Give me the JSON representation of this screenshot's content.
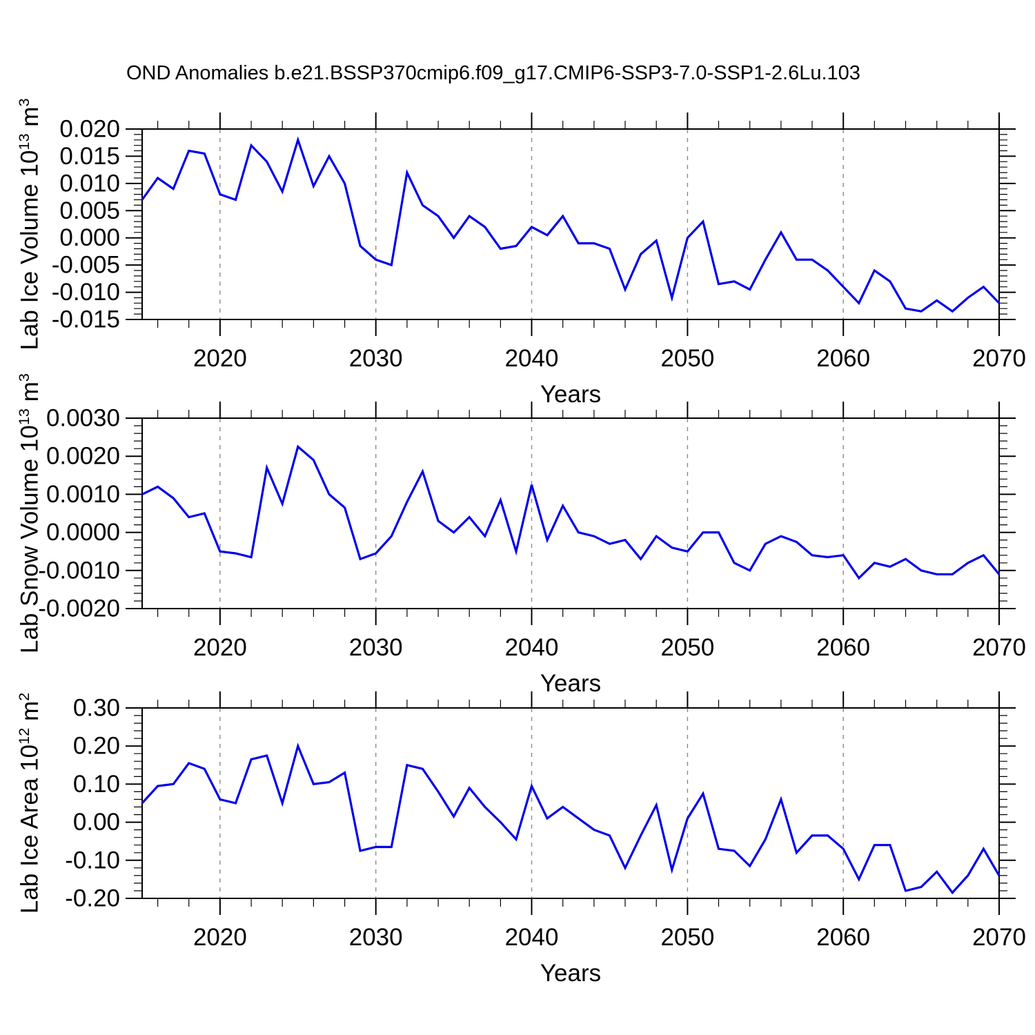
{
  "title": "OND Anomalies b.e21.BSSP370cmip6.f09_g17.CMIP6-SSP3-7.0-SSP1-2.6Lu.103",
  "colors": {
    "line": "#0000EE",
    "grid": "#8A8A8A",
    "axis": "#000000",
    "text": "#000000",
    "background": "#FFFFFF"
  },
  "x_axis": {
    "label": "Years",
    "range": [
      2015,
      2070
    ],
    "tick_years": [
      2020,
      2030,
      2040,
      2050,
      2060,
      2070
    ],
    "tick_labels": [
      "2020",
      "2030",
      "2040",
      "2050",
      "2060",
      "2070"
    ],
    "minor_step_years": 2,
    "gridline_years": [
      2020,
      2030,
      2040,
      2050,
      2060
    ]
  },
  "years": [
    2015,
    2016,
    2017,
    2018,
    2019,
    2020,
    2021,
    2022,
    2023,
    2024,
    2025,
    2026,
    2027,
    2028,
    2029,
    2030,
    2031,
    2032,
    2033,
    2034,
    2035,
    2036,
    2037,
    2038,
    2039,
    2040,
    2041,
    2042,
    2043,
    2044,
    2045,
    2046,
    2047,
    2048,
    2049,
    2050,
    2051,
    2052,
    2053,
    2054,
    2055,
    2056,
    2057,
    2058,
    2059,
    2060,
    2061,
    2062,
    2063,
    2064,
    2065,
    2066,
    2067,
    2068,
    2069,
    2070
  ],
  "chart_data": [
    {
      "type": "line",
      "name": "lab-ice-volume",
      "title": "",
      "xlabel": "Years",
      "ylabel": "Lab Ice Volume 10^13 m^3",
      "ylabel_parts": {
        "prefix": "Lab Ice Volume 10",
        "exp": "13",
        "unit": "m",
        "unit_exp": "3"
      },
      "ylim": [
        -0.015,
        0.02
      ],
      "ytick_step": 0.005,
      "yminor_step": 0.001,
      "ytick_labels": [
        "0.020",
        "0.015",
        "0.010",
        "0.005",
        "0.000",
        "-0.005",
        "-0.010",
        "-0.015"
      ],
      "grid": "x-dashed",
      "legend": "none",
      "values": [
        0.007,
        0.011,
        0.009,
        0.016,
        0.0155,
        0.008,
        0.007,
        0.017,
        0.014,
        0.0085,
        0.018,
        0.0095,
        0.015,
        0.01,
        -0.0015,
        -0.004,
        -0.005,
        0.012,
        0.006,
        0.004,
        0.0,
        0.004,
        0.002,
        -0.002,
        -0.0015,
        0.002,
        0.0005,
        0.004,
        -0.001,
        -0.001,
        -0.002,
        -0.0095,
        -0.003,
        -0.0005,
        -0.011,
        0.0,
        0.003,
        -0.0085,
        -0.008,
        -0.0095,
        -0.004,
        0.001,
        -0.004,
        -0.004,
        -0.006,
        -0.009,
        -0.012,
        -0.006,
        -0.008,
        -0.013,
        -0.0135,
        -0.0115,
        -0.0135,
        -0.011,
        -0.009,
        -0.012
      ]
    },
    {
      "type": "line",
      "name": "lab-snow-volume",
      "title": "",
      "xlabel": "Years",
      "ylabel": "Lab Snow Volume 10^13 m^3",
      "ylabel_parts": {
        "prefix": "Lab Snow Volume 10",
        "exp": "13",
        "unit": "m",
        "unit_exp": "3"
      },
      "ylim": [
        -0.002,
        0.003
      ],
      "ytick_step": 0.001,
      "yminor_step": 0.0002,
      "ytick_labels": [
        "0.0030",
        "0.0020",
        "0.0010",
        "0.0000",
        "-0.0010",
        "-0.0020"
      ],
      "grid": "x-dashed",
      "legend": "none",
      "values": [
        0.001,
        0.0012,
        0.0009,
        0.0004,
        0.0005,
        -0.0005,
        -0.00055,
        -0.00065,
        0.0017,
        0.00075,
        0.00225,
        0.0019,
        0.001,
        0.00065,
        -0.0007,
        -0.00055,
        -0.0001,
        0.0008,
        0.0016,
        0.0003,
        0.0,
        0.0004,
        -0.0001,
        0.00085,
        -0.0005,
        0.00125,
        -0.0002,
        0.0007,
        0.0,
        -0.0001,
        -0.0003,
        -0.0002,
        -0.0007,
        -0.0001,
        -0.0004,
        -0.0005,
        0.0,
        0.0,
        -0.0008,
        -0.001,
        -0.0003,
        -0.0001,
        -0.00025,
        -0.0006,
        -0.00065,
        -0.0006,
        -0.0012,
        -0.0008,
        -0.0009,
        -0.0007,
        -0.001,
        -0.0011,
        -0.0011,
        -0.0008,
        -0.0006,
        -0.0011
      ]
    },
    {
      "type": "line",
      "name": "lab-ice-area",
      "title": "",
      "xlabel": "Years",
      "ylabel": "Lab Ice Area 10^12 m^2",
      "ylabel_parts": {
        "prefix": "Lab Ice Area 10",
        "exp": "12",
        "unit": "m",
        "unit_exp": "2"
      },
      "ylim": [
        -0.2,
        0.3
      ],
      "ytick_step": 0.1,
      "yminor_step": 0.02,
      "ytick_labels": [
        "0.30",
        "0.20",
        "0.10",
        "0.00",
        "-0.10",
        "-0.20"
      ],
      "grid": "x-dashed",
      "legend": "none",
      "values": [
        0.05,
        0.095,
        0.1,
        0.155,
        0.14,
        0.06,
        0.05,
        0.165,
        0.175,
        0.05,
        0.2,
        0.1,
        0.105,
        0.13,
        -0.075,
        -0.065,
        -0.065,
        0.15,
        0.14,
        0.08,
        0.015,
        0.09,
        0.04,
        0.0,
        -0.045,
        0.095,
        0.01,
        0.04,
        0.01,
        -0.02,
        -0.035,
        -0.12,
        -0.035,
        0.045,
        -0.125,
        0.01,
        0.075,
        -0.07,
        -0.075,
        -0.115,
        -0.045,
        0.06,
        -0.08,
        -0.035,
        -0.035,
        -0.07,
        -0.15,
        -0.06,
        -0.06,
        -0.18,
        -0.17,
        -0.13,
        -0.185,
        -0.14,
        -0.07,
        -0.14
      ]
    }
  ]
}
